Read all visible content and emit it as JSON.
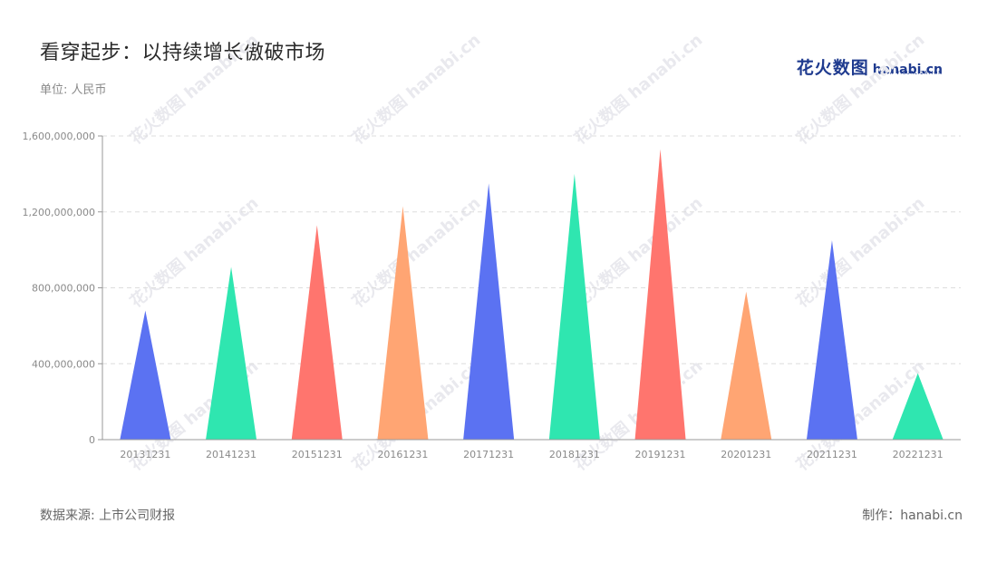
{
  "header": {
    "title": "看穿起步：以持续增长傲破市场",
    "subtitle": "单位: 人民币"
  },
  "logo": {
    "brand_cn": "花火数图",
    "brand_en": "hanabi.cn",
    "tagline": "DATA VISUALIZATION"
  },
  "footer": {
    "source": "数据来源: 上市公司财报",
    "credit": "制作：hanabi.cn"
  },
  "chart_data": {
    "type": "bar",
    "shape": "triangle",
    "categories": [
      "20131231",
      "20141231",
      "20151231",
      "20161231",
      "20171231",
      "20181231",
      "20191231",
      "20201231",
      "20211231",
      "20221231"
    ],
    "values": [
      680000000,
      910000000,
      1130000000,
      1230000000,
      1350000000,
      1400000000,
      1530000000,
      780000000,
      1050000000,
      350000000
    ],
    "colors": [
      "#5b72f2",
      "#2fe6b0",
      "#ff756e",
      "#ffa573",
      "#5b72f2",
      "#2fe6b0",
      "#ff756e",
      "#ffa573",
      "#5b72f2",
      "#2fe6b0"
    ],
    "ylim": [
      0,
      1600000000
    ],
    "yticks": [
      0,
      400000000,
      800000000,
      1200000000,
      1600000000
    ],
    "ytick_labels": [
      "0",
      "400,000,000",
      "800,000,000",
      "1,200,000,000",
      "1,600,000,000"
    ],
    "grid": true,
    "legend": "none"
  }
}
